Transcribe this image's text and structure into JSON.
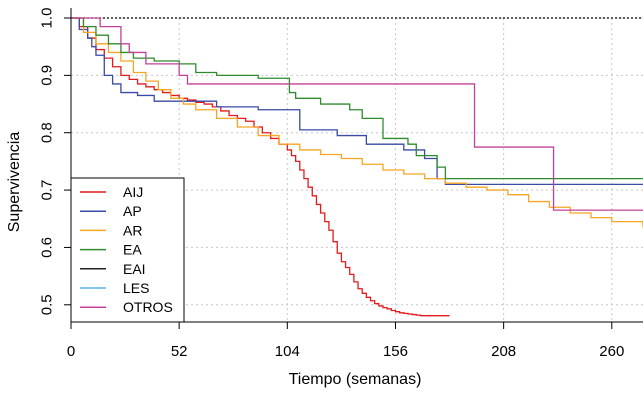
{
  "chart_data": {
    "type": "line",
    "title": "",
    "xlabel": "Tiempo (semanas)",
    "ylabel": "Supervivencia",
    "xlim": [
      0,
      275
    ],
    "ylim": [
      0.47,
      1.0
    ],
    "x_ticks": [
      0,
      52,
      104,
      156,
      208,
      260
    ],
    "y_ticks": [
      0.5,
      0.6,
      0.7,
      0.8,
      0.9,
      1.0
    ],
    "x_tick_labels": [
      "0",
      "52",
      "104",
      "156",
      "208",
      "260"
    ],
    "y_tick_labels": [
      "0.5",
      "0.6",
      "0.7",
      "0.8",
      "0.9",
      "1.0"
    ],
    "grid": true,
    "step": true,
    "legend_position": "bottom-left",
    "reference_line": {
      "y": 1.0,
      "style": "dotted",
      "color": "#000000"
    },
    "series": [
      {
        "name": "AIJ",
        "color": "#e41a1c",
        "x": [
          0,
          4,
          8,
          12,
          16,
          20,
          24,
          28,
          32,
          36,
          40,
          44,
          48,
          52,
          56,
          60,
          64,
          68,
          72,
          76,
          80,
          84,
          88,
          92,
          96,
          100,
          104,
          106,
          108,
          110,
          112,
          114,
          116,
          118,
          120,
          122,
          124,
          126,
          128,
          130,
          132,
          134,
          136,
          138,
          140,
          142,
          144,
          146,
          148,
          150,
          152,
          154,
          156,
          158,
          160,
          162,
          164,
          166,
          168,
          172,
          176,
          182
        ],
        "y": [
          1.0,
          0.985,
          0.965,
          0.945,
          0.93,
          0.915,
          0.9,
          0.893,
          0.885,
          0.88,
          0.875,
          0.87,
          0.865,
          0.86,
          0.857,
          0.853,
          0.85,
          0.845,
          0.838,
          0.83,
          0.825,
          0.82,
          0.81,
          0.8,
          0.79,
          0.78,
          0.77,
          0.76,
          0.75,
          0.735,
          0.72,
          0.705,
          0.69,
          0.675,
          0.66,
          0.645,
          0.63,
          0.61,
          0.59,
          0.575,
          0.565,
          0.553,
          0.54,
          0.528,
          0.52,
          0.513,
          0.507,
          0.502,
          0.498,
          0.495,
          0.493,
          0.49,
          0.488,
          0.486,
          0.485,
          0.484,
          0.483,
          0.482,
          0.481,
          0.481,
          0.481,
          0.481
        ]
      },
      {
        "name": "AP",
        "color": "#3a4aa6",
        "x": [
          0,
          4,
          8,
          10,
          12,
          16,
          20,
          24,
          28,
          32,
          40,
          52,
          70,
          90,
          110,
          126,
          128,
          142,
          154,
          160,
          170,
          176,
          180,
          275
        ],
        "y": [
          1.0,
          0.98,
          0.965,
          0.95,
          0.935,
          0.9,
          0.885,
          0.87,
          0.87,
          0.865,
          0.855,
          0.855,
          0.845,
          0.84,
          0.805,
          0.805,
          0.795,
          0.78,
          0.78,
          0.77,
          0.755,
          0.72,
          0.71,
          0.71
        ]
      },
      {
        "name": "AR",
        "color": "#f5a623",
        "x": [
          0,
          6,
          12,
          18,
          24,
          30,
          36,
          42,
          48,
          54,
          60,
          70,
          80,
          90,
          100,
          110,
          120,
          130,
          140,
          150,
          160,
          170,
          180,
          190,
          200,
          210,
          220,
          230,
          240,
          250,
          260,
          275
        ],
        "y": [
          1.0,
          0.975,
          0.955,
          0.94,
          0.925,
          0.905,
          0.89,
          0.875,
          0.86,
          0.85,
          0.84,
          0.825,
          0.81,
          0.795,
          0.78,
          0.77,
          0.762,
          0.755,
          0.745,
          0.735,
          0.728,
          0.72,
          0.712,
          0.705,
          0.7,
          0.692,
          0.68,
          0.67,
          0.66,
          0.652,
          0.645,
          0.635
        ]
      },
      {
        "name": "EA",
        "color": "#2e8b2e",
        "x": [
          0,
          6,
          12,
          18,
          24,
          30,
          40,
          52,
          60,
          70,
          90,
          105,
          108,
          120,
          134,
          140,
          150,
          162,
          166,
          176,
          180,
          275
        ],
        "y": [
          1.0,
          0.985,
          0.97,
          0.955,
          0.94,
          0.93,
          0.925,
          0.92,
          0.905,
          0.9,
          0.895,
          0.87,
          0.86,
          0.85,
          0.84,
          0.825,
          0.79,
          0.78,
          0.76,
          0.74,
          0.72,
          0.72
        ]
      },
      {
        "name": "EAI",
        "color": "#222222",
        "x": [],
        "y": []
      },
      {
        "name": "LES",
        "color": "#56b4e9",
        "x": [],
        "y": []
      },
      {
        "name": "OTROS",
        "color": "#c4419a",
        "x": [
          0,
          14,
          24,
          28,
          36,
          52,
          56,
          194,
          232,
          275
        ],
        "y": [
          1.0,
          0.985,
          0.955,
          0.94,
          0.92,
          0.9,
          0.885,
          0.775,
          0.665,
          0.665
        ]
      }
    ]
  }
}
